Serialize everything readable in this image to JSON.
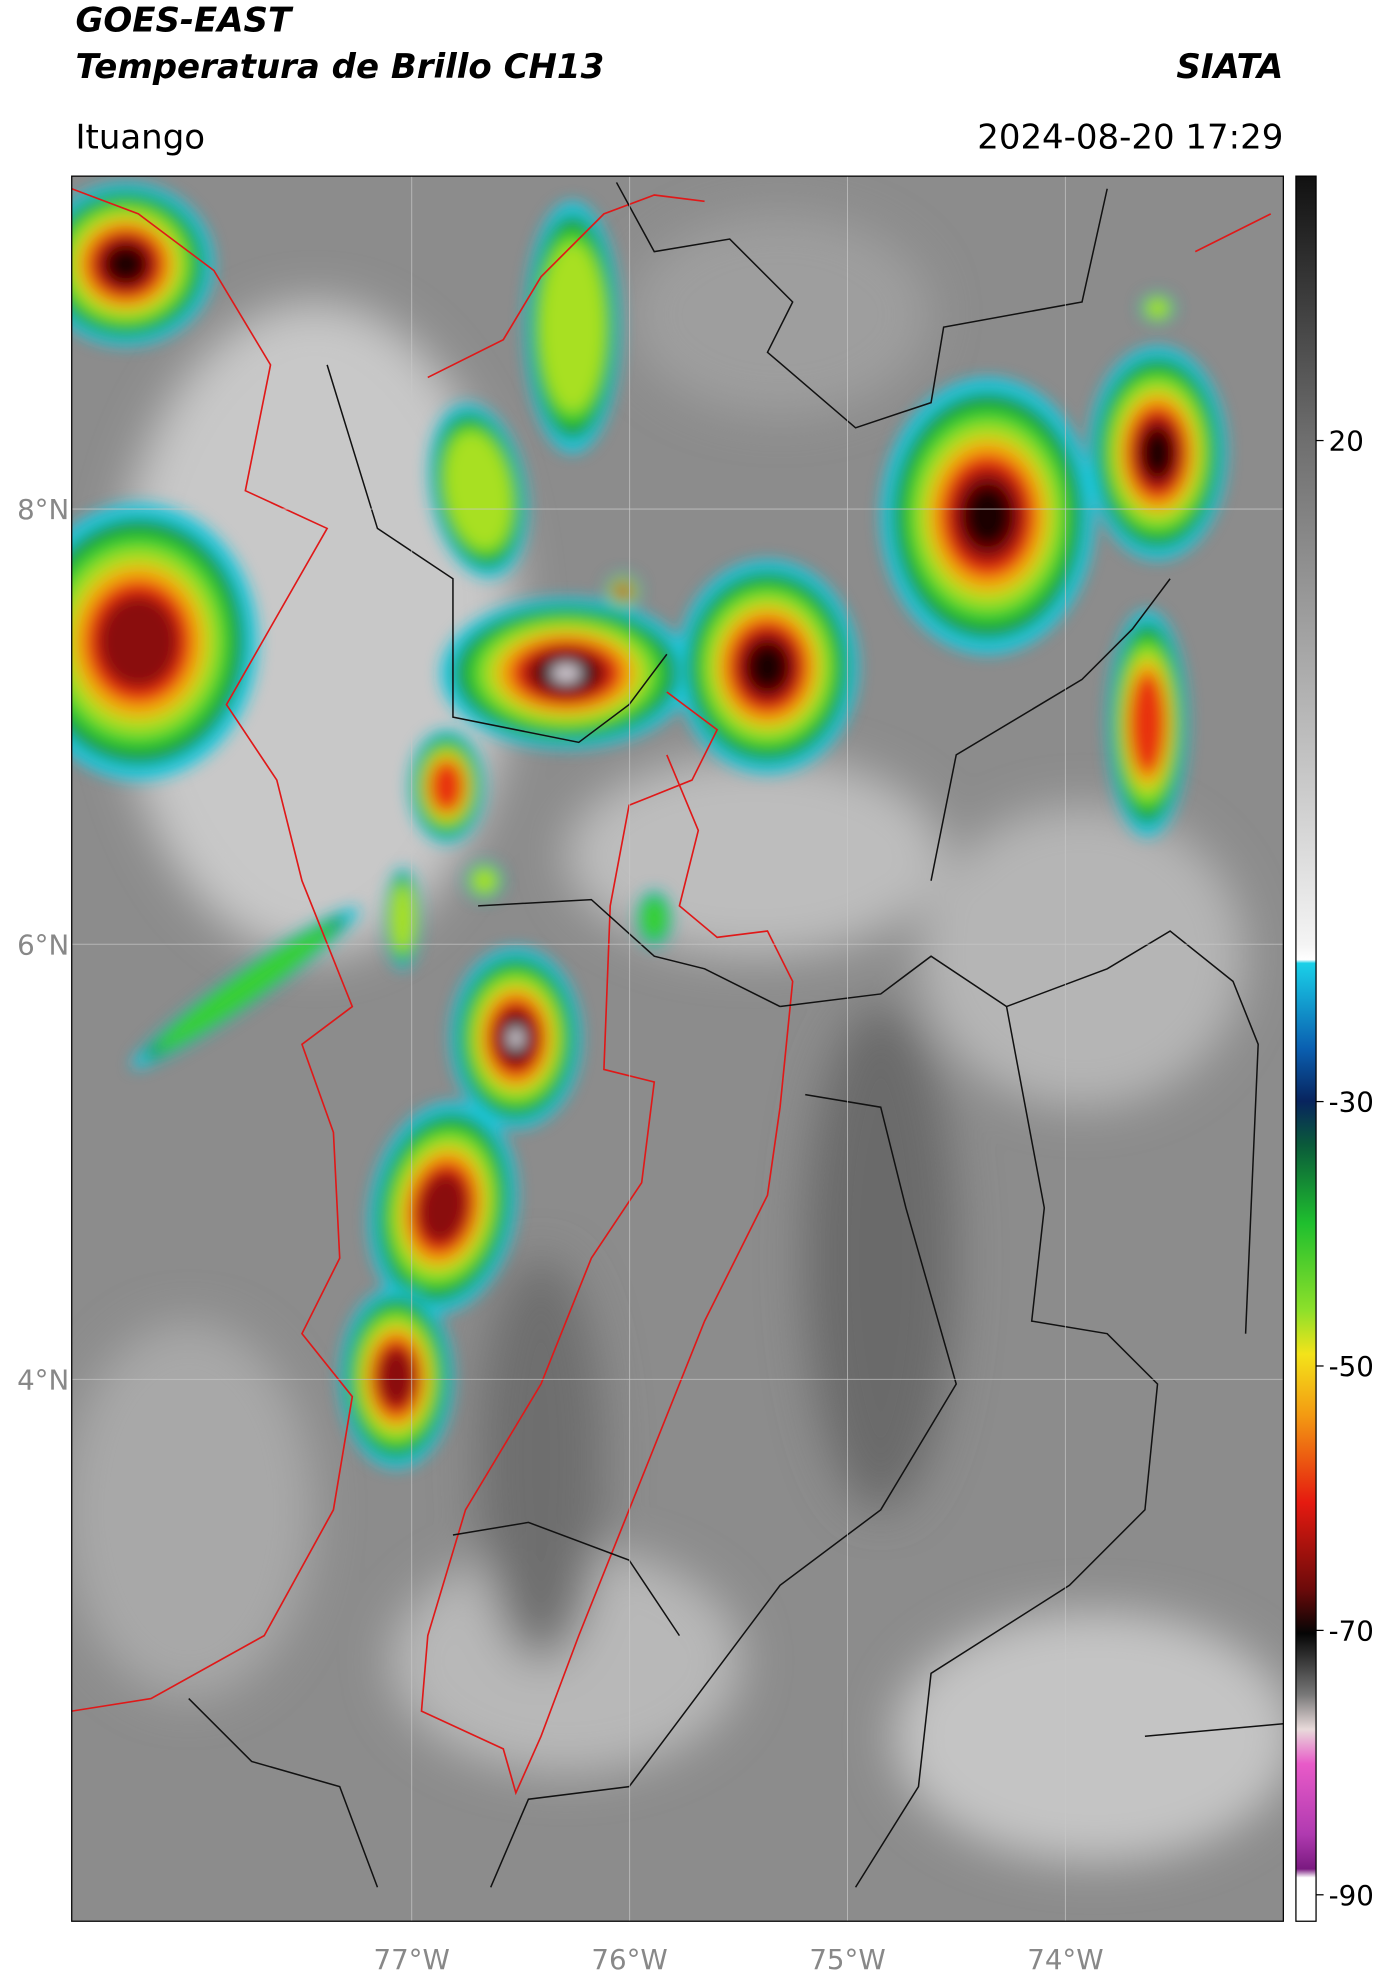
{
  "chart_data": {
    "type": "map",
    "title": "GOES-EAST",
    "subtitle": "Temperatura de Brillo CH13",
    "source": "SIATA",
    "region": "Ituango",
    "timestamp": "2024-08-20 17:29",
    "xlim": [
      -78.56,
      -73
    ],
    "ylim": [
      1.51,
      9.53
    ],
    "xticks": [
      {
        "value": -77,
        "label": "77°W"
      },
      {
        "value": -76,
        "label": "76°W"
      },
      {
        "value": -75,
        "label": "75°W"
      },
      {
        "value": -74,
        "label": "74°W"
      }
    ],
    "yticks": [
      {
        "value": 4,
        "label": "4°N"
      },
      {
        "value": 6,
        "label": "6°N"
      },
      {
        "value": 8,
        "label": "8°N"
      }
    ],
    "grid": true,
    "colorbar": {
      "lim": [
        -92,
        40
      ],
      "ticks": [
        -90,
        -70,
        -50,
        -30,
        20
      ]
    }
  }
}
